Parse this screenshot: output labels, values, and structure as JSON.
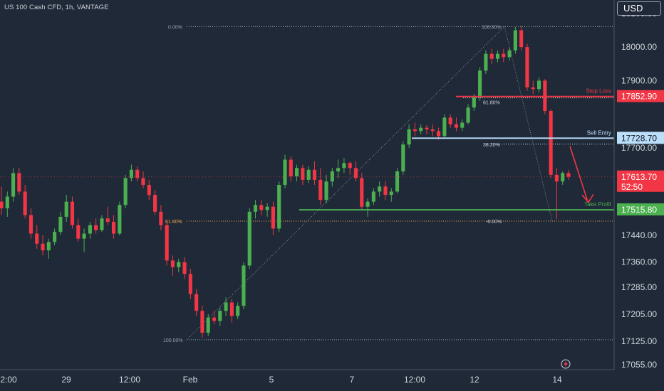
{
  "header": {
    "symbol_title": "US 100 Cash CFD, 1h, VANTAGE",
    "currency_label": "USD"
  },
  "chart_data": {
    "type": "candlestick",
    "y_range": [
      17040,
      18140
    ],
    "y_ticks": [
      {
        "value": 18100,
        "label": "18100.00"
      },
      {
        "value": 18000,
        "label": "18000.00"
      },
      {
        "value": 17900,
        "label": "17900.00"
      },
      {
        "value": 17700,
        "label": "17700.00"
      },
      {
        "value": 17440,
        "label": "17440.00"
      },
      {
        "value": 17360,
        "label": "17360.00"
      },
      {
        "value": 17285,
        "label": "17285.00"
      },
      {
        "value": 17205,
        "label": "17205.00"
      },
      {
        "value": 17125,
        "label": "17125.00"
      },
      {
        "value": 17055,
        "label": "17055.00"
      }
    ],
    "x_ticks": [
      "2:00",
      "29",
      "12:00",
      "Feb",
      "5",
      "7",
      "12:00",
      "12",
      "14"
    ],
    "price_tags": [
      {
        "value": 17852.9,
        "label": "17852.90",
        "color": "#f23645",
        "text_color": "#ffffff"
      },
      {
        "value": 17728.7,
        "label": "17728.70",
        "color": "#bbdefb",
        "text_color": "#131722"
      },
      {
        "value": 17613.7,
        "label": "17613.70",
        "sub_label": "52:50",
        "color": "#f23645",
        "text_color": "#ffffff"
      },
      {
        "value": 17515.8,
        "label": "17515.80",
        "color": "#4caf50",
        "text_color": "#ffffff"
      }
    ],
    "trade_levels": [
      {
        "label": "Stop Loss",
        "value": 17852.9,
        "color": "#f23645"
      },
      {
        "label": "Sell Entry",
        "value": 17728.7,
        "color": "#bbdefb"
      },
      {
        "label": "Take Profit",
        "value": 17515.8,
        "color": "#4caf50"
      }
    ],
    "fib_levels": [
      {
        "label": "0.00%",
        "value": 18061
      },
      {
        "label": "100.00%",
        "value": 18061
      },
      {
        "label": "61.80%",
        "value": 17849
      },
      {
        "label": "38.20%",
        "value": 17711
      },
      {
        "label": "61.80%",
        "value": 17482
      },
      {
        "label": "-0.00%",
        "value": 17482
      },
      {
        "label": "100.00%",
        "value": 17129
      }
    ],
    "current_price": 17613.7,
    "candles": [
      {
        "o": 17540,
        "h": 17585,
        "l": 17500,
        "c": 17520
      },
      {
        "o": 17520,
        "h": 17570,
        "l": 17495,
        "c": 17555
      },
      {
        "o": 17555,
        "h": 17640,
        "l": 17540,
        "c": 17625
      },
      {
        "o": 17625,
        "h": 17640,
        "l": 17560,
        "c": 17570
      },
      {
        "o": 17570,
        "h": 17590,
        "l": 17490,
        "c": 17500
      },
      {
        "o": 17500,
        "h": 17520,
        "l": 17430,
        "c": 17445
      },
      {
        "o": 17445,
        "h": 17470,
        "l": 17400,
        "c": 17415
      },
      {
        "o": 17415,
        "h": 17440,
        "l": 17380,
        "c": 17395
      },
      {
        "o": 17395,
        "h": 17430,
        "l": 17370,
        "c": 17420
      },
      {
        "o": 17420,
        "h": 17460,
        "l": 17410,
        "c": 17450
      },
      {
        "o": 17450,
        "h": 17510,
        "l": 17440,
        "c": 17495
      },
      {
        "o": 17495,
        "h": 17560,
        "l": 17480,
        "c": 17540
      },
      {
        "o": 17540,
        "h": 17555,
        "l": 17460,
        "c": 17470
      },
      {
        "o": 17470,
        "h": 17490,
        "l": 17420,
        "c": 17430
      },
      {
        "o": 17430,
        "h": 17460,
        "l": 17390,
        "c": 17445
      },
      {
        "o": 17445,
        "h": 17480,
        "l": 17430,
        "c": 17470
      },
      {
        "o": 17470,
        "h": 17490,
        "l": 17445,
        "c": 17455
      },
      {
        "o": 17455,
        "h": 17500,
        "l": 17450,
        "c": 17490
      },
      {
        "o": 17490,
        "h": 17525,
        "l": 17470,
        "c": 17480
      },
      {
        "o": 17480,
        "h": 17500,
        "l": 17430,
        "c": 17445
      },
      {
        "o": 17445,
        "h": 17540,
        "l": 17440,
        "c": 17530
      },
      {
        "o": 17530,
        "h": 17620,
        "l": 17520,
        "c": 17610
      },
      {
        "o": 17610,
        "h": 17650,
        "l": 17600,
        "c": 17635
      },
      {
        "o": 17635,
        "h": 17645,
        "l": 17600,
        "c": 17610
      },
      {
        "o": 17610,
        "h": 17630,
        "l": 17580,
        "c": 17590
      },
      {
        "o": 17590,
        "h": 17605,
        "l": 17545,
        "c": 17560
      },
      {
        "o": 17560,
        "h": 17575,
        "l": 17500,
        "c": 17510
      },
      {
        "o": 17510,
        "h": 17530,
        "l": 17455,
        "c": 17470
      },
      {
        "o": 17470,
        "h": 17480,
        "l": 17350,
        "c": 17365
      },
      {
        "o": 17365,
        "h": 17380,
        "l": 17320,
        "c": 17345
      },
      {
        "o": 17345,
        "h": 17370,
        "l": 17330,
        "c": 17360
      },
      {
        "o": 17360,
        "h": 17375,
        "l": 17310,
        "c": 17325
      },
      {
        "o": 17325,
        "h": 17340,
        "l": 17250,
        "c": 17265
      },
      {
        "o": 17265,
        "h": 17280,
        "l": 17200,
        "c": 17215
      },
      {
        "o": 17215,
        "h": 17230,
        "l": 17135,
        "c": 17150
      },
      {
        "o": 17150,
        "h": 17205,
        "l": 17140,
        "c": 17195
      },
      {
        "o": 17195,
        "h": 17215,
        "l": 17175,
        "c": 17185
      },
      {
        "o": 17185,
        "h": 17225,
        "l": 17170,
        "c": 17215
      },
      {
        "o": 17215,
        "h": 17255,
        "l": 17200,
        "c": 17240
      },
      {
        "o": 17240,
        "h": 17250,
        "l": 17180,
        "c": 17200
      },
      {
        "o": 17200,
        "h": 17240,
        "l": 17190,
        "c": 17230
      },
      {
        "o": 17230,
        "h": 17360,
        "l": 17220,
        "c": 17350
      },
      {
        "o": 17350,
        "h": 17520,
        "l": 17340,
        "c": 17510
      },
      {
        "o": 17510,
        "h": 17545,
        "l": 17490,
        "c": 17530
      },
      {
        "o": 17530,
        "h": 17545,
        "l": 17500,
        "c": 17515
      },
      {
        "o": 17515,
        "h": 17535,
        "l": 17495,
        "c": 17525
      },
      {
        "o": 17525,
        "h": 17540,
        "l": 17440,
        "c": 17460
      },
      {
        "o": 17460,
        "h": 17600,
        "l": 17450,
        "c": 17590
      },
      {
        "o": 17590,
        "h": 17680,
        "l": 17580,
        "c": 17665
      },
      {
        "o": 17665,
        "h": 17675,
        "l": 17600,
        "c": 17615
      },
      {
        "o": 17615,
        "h": 17650,
        "l": 17600,
        "c": 17640
      },
      {
        "o": 17640,
        "h": 17650,
        "l": 17590,
        "c": 17605
      },
      {
        "o": 17605,
        "h": 17645,
        "l": 17595,
        "c": 17635
      },
      {
        "o": 17635,
        "h": 17660,
        "l": 17590,
        "c": 17605
      },
      {
        "o": 17605,
        "h": 17640,
        "l": 17530,
        "c": 17545
      },
      {
        "o": 17545,
        "h": 17620,
        "l": 17535,
        "c": 17600
      },
      {
        "o": 17600,
        "h": 17640,
        "l": 17585,
        "c": 17630
      },
      {
        "o": 17630,
        "h": 17665,
        "l": 17610,
        "c": 17640
      },
      {
        "o": 17640,
        "h": 17670,
        "l": 17625,
        "c": 17655
      },
      {
        "o": 17655,
        "h": 17660,
        "l": 17620,
        "c": 17640
      },
      {
        "o": 17640,
        "h": 17660,
        "l": 17600,
        "c": 17610
      },
      {
        "o": 17610,
        "h": 17625,
        "l": 17515,
        "c": 17525
      },
      {
        "o": 17525,
        "h": 17550,
        "l": 17495,
        "c": 17540
      },
      {
        "o": 17540,
        "h": 17580,
        "l": 17530,
        "c": 17570
      },
      {
        "o": 17570,
        "h": 17600,
        "l": 17555,
        "c": 17585
      },
      {
        "o": 17585,
        "h": 17600,
        "l": 17545,
        "c": 17560
      },
      {
        "o": 17560,
        "h": 17580,
        "l": 17540,
        "c": 17570
      },
      {
        "o": 17570,
        "h": 17640,
        "l": 17565,
        "c": 17630
      },
      {
        "o": 17630,
        "h": 17720,
        "l": 17620,
        "c": 17710
      },
      {
        "o": 17710,
        "h": 17770,
        "l": 17700,
        "c": 17755
      },
      {
        "o": 17755,
        "h": 17775,
        "l": 17735,
        "c": 17750
      },
      {
        "o": 17750,
        "h": 17770,
        "l": 17740,
        "c": 17760
      },
      {
        "o": 17760,
        "h": 17768,
        "l": 17740,
        "c": 17755
      },
      {
        "o": 17755,
        "h": 17770,
        "l": 17735,
        "c": 17750
      },
      {
        "o": 17750,
        "h": 17760,
        "l": 17725,
        "c": 17735
      },
      {
        "o": 17735,
        "h": 17800,
        "l": 17730,
        "c": 17790
      },
      {
        "o": 17790,
        "h": 17800,
        "l": 17760,
        "c": 17770
      },
      {
        "o": 17770,
        "h": 17790,
        "l": 17750,
        "c": 17760
      },
      {
        "o": 17760,
        "h": 17785,
        "l": 17750,
        "c": 17775
      },
      {
        "o": 17775,
        "h": 17830,
        "l": 17770,
        "c": 17820
      },
      {
        "o": 17820,
        "h": 17860,
        "l": 17810,
        "c": 17850
      },
      {
        "o": 17850,
        "h": 17940,
        "l": 17840,
        "c": 17930
      },
      {
        "o": 17930,
        "h": 17990,
        "l": 17920,
        "c": 17980
      },
      {
        "o": 17980,
        "h": 17995,
        "l": 17950,
        "c": 17965
      },
      {
        "o": 17965,
        "h": 17990,
        "l": 17955,
        "c": 17980
      },
      {
        "o": 17980,
        "h": 17995,
        "l": 17955,
        "c": 17970
      },
      {
        "o": 17970,
        "h": 18000,
        "l": 17960,
        "c": 17990
      },
      {
        "o": 17990,
        "h": 18060,
        "l": 17980,
        "c": 18050
      },
      {
        "o": 18050,
        "h": 18061,
        "l": 17990,
        "c": 18000
      },
      {
        "o": 18000,
        "h": 18010,
        "l": 17870,
        "c": 17880
      },
      {
        "o": 17880,
        "h": 17900,
        "l": 17860,
        "c": 17875
      },
      {
        "o": 17875,
        "h": 17910,
        "l": 17865,
        "c": 17900
      },
      {
        "o": 17900,
        "h": 17905,
        "l": 17800,
        "c": 17810
      },
      {
        "o": 17810,
        "h": 17815,
        "l": 17610,
        "c": 17620
      },
      {
        "o": 17620,
        "h": 17640,
        "l": 17488,
        "c": 17600
      },
      {
        "o": 17600,
        "h": 17630,
        "l": 17590,
        "c": 17625
      },
      {
        "o": 17625,
        "h": 17635,
        "l": 17605,
        "c": 17614
      }
    ]
  }
}
